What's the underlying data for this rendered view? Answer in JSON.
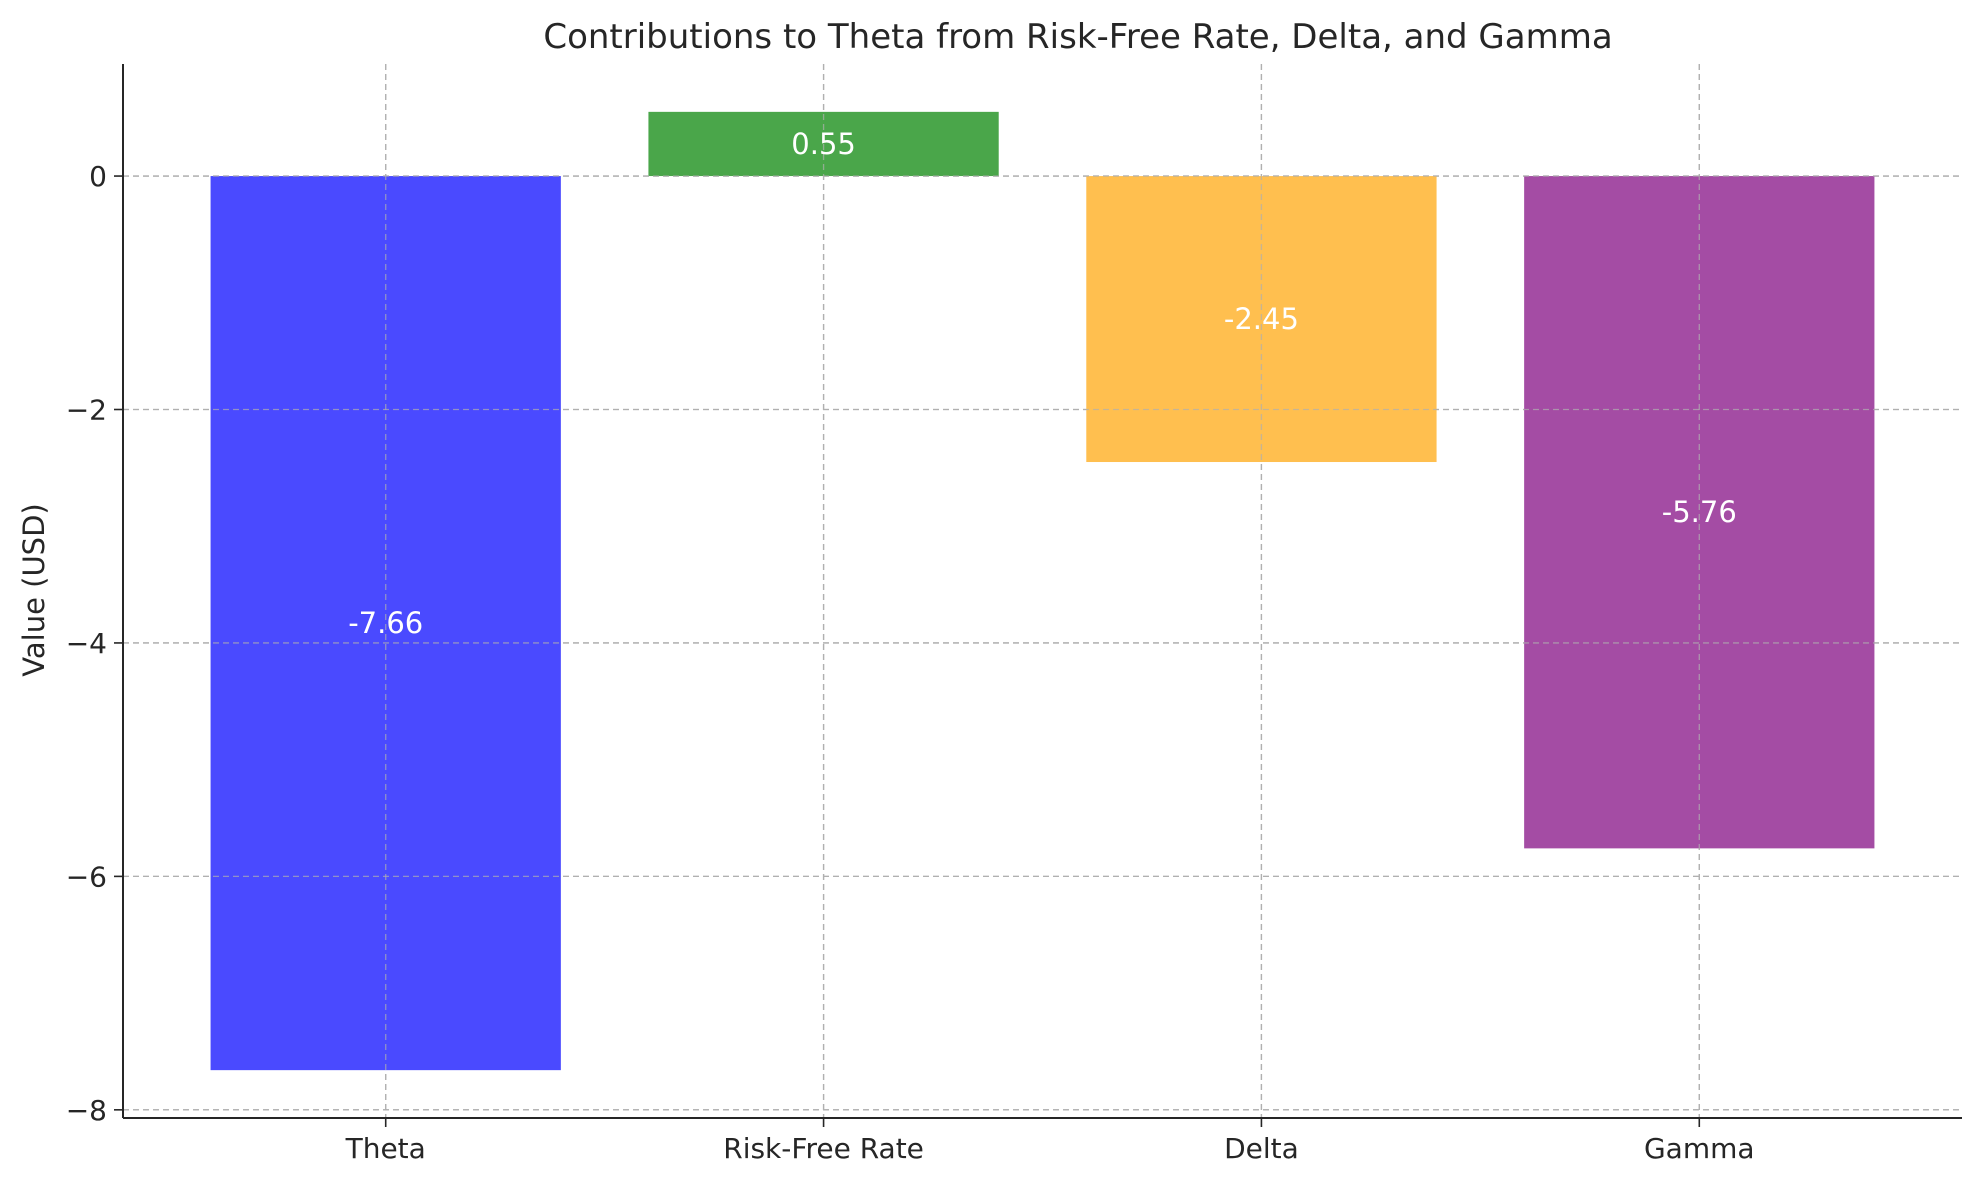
{
  "chart_data": {
    "type": "bar",
    "title": "Contributions to Theta from Risk-Free Rate, Delta, and Gamma",
    "xlabel": "",
    "ylabel": "Value (USD)",
    "categories": [
      "Theta",
      "Risk-Free Rate",
      "Delta",
      "Gamma"
    ],
    "values": [
      -7.66,
      0.55,
      -2.45,
      -5.76
    ],
    "data_labels": [
      "-7.66",
      "0.55",
      "-2.45",
      "-5.76"
    ],
    "colors": [
      "#4a4aff",
      "#4aa64a",
      "#ffbf4f",
      "#a44ca4"
    ],
    "ylim": [
      -8.07,
      0.96
    ],
    "yticks": [
      0,
      -2,
      -4,
      -6,
      -8
    ],
    "ytick_labels": [
      "0",
      "−2",
      "−4",
      "−6",
      "−8"
    ],
    "grid": true,
    "legend": "none"
  }
}
